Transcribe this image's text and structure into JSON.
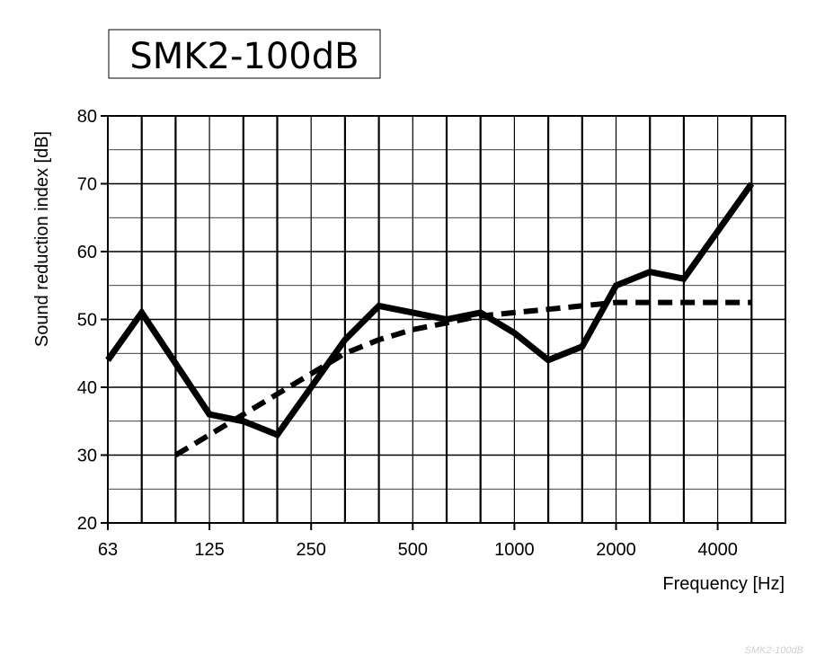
{
  "title": "SMK2-100dB",
  "watermark": "SMK2-100dB",
  "chart_data": {
    "type": "line",
    "xlabel": "Frequency [Hz]",
    "ylabel": "Sound reduction index [dB]",
    "x_scale": "log (third-octave bands)",
    "ylim": [
      20,
      80
    ],
    "y_ticks": [
      20,
      30,
      40,
      50,
      60,
      70,
      80
    ],
    "x_tick_labels": [
      "63",
      "125",
      "250",
      "500",
      "1000",
      "2000",
      "4000"
    ],
    "x": [
      63,
      80,
      100,
      125,
      160,
      200,
      250,
      315,
      400,
      500,
      630,
      800,
      1000,
      1250,
      1600,
      2000,
      2500,
      3150,
      4000,
      5000
    ],
    "grid": true,
    "legend": "none",
    "series": [
      {
        "style": "solid",
        "color": "#000000",
        "values": [
          44,
          51,
          43.5,
          36,
          35,
          33,
          40,
          47,
          52,
          51,
          50,
          51,
          48,
          44,
          46,
          55,
          57,
          56,
          63,
          70
        ]
      },
      {
        "style": "dashed",
        "color": "#000000",
        "x": [
          100,
          125,
          160,
          200,
          250,
          315,
          400,
          500,
          630,
          800,
          1000,
          1250,
          1600,
          2000,
          2500,
          3150,
          4000,
          5000
        ],
        "values": [
          30,
          33,
          36,
          39,
          42,
          45,
          47,
          48.5,
          49.5,
          50.5,
          51,
          51.5,
          52,
          52.5,
          52.5,
          52.5,
          52.5,
          52.5
        ]
      }
    ]
  }
}
